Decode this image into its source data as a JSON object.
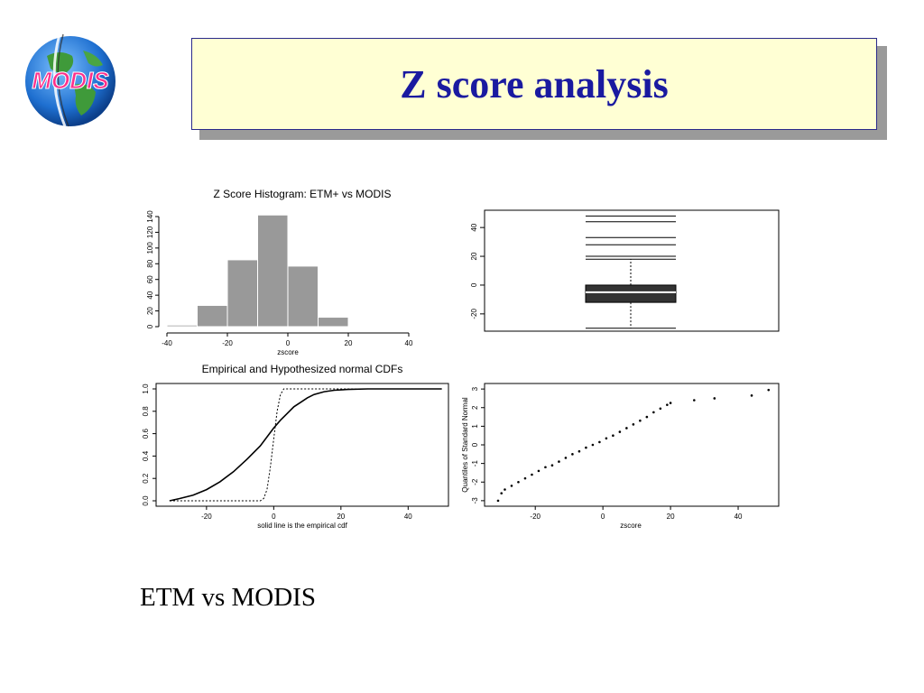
{
  "slide": {
    "title": "Z score analysis",
    "caption": "ETM vs MODIS",
    "logo_text": "MODIS"
  },
  "colors": {
    "title_text": "#1a1aa0",
    "title_fill": "#ffffd4",
    "bar_fill": "#999999",
    "box_fill": "#333333"
  },
  "chart_data": [
    {
      "type": "bar",
      "subtype": "histogram",
      "title": "Z Score Histogram: ETM+ vs MODIS",
      "xlabel": "zscore",
      "ylabel": "",
      "xlim": [
        -40,
        40
      ],
      "ylim": [
        0,
        140
      ],
      "xticks": [
        -40,
        -20,
        0,
        20,
        40
      ],
      "yticks": [
        0,
        20,
        40,
        60,
        80,
        100,
        120,
        140
      ],
      "bins": [
        {
          "from": -40,
          "to": -30,
          "count": 2
        },
        {
          "from": -30,
          "to": -20,
          "count": 27
        },
        {
          "from": -20,
          "to": -10,
          "count": 85
        },
        {
          "from": -10,
          "to": 0,
          "count": 142
        },
        {
          "from": 0,
          "to": 10,
          "count": 77
        },
        {
          "from": 10,
          "to": 20,
          "count": 12
        }
      ]
    },
    {
      "type": "box",
      "title": "",
      "ylim": [
        -32,
        52
      ],
      "yticks": [
        -20,
        0,
        20,
        40
      ],
      "q1": -12,
      "median": -5,
      "q3": 0,
      "whisker_low": -30,
      "whisker_high": 18,
      "outliers": [
        20,
        28,
        33,
        44,
        48
      ]
    },
    {
      "type": "line",
      "title": "Empirical and Hypothesized normal CDFs",
      "xlabel": "solid line is the empirical cdf",
      "xlim": [
        -35,
        52
      ],
      "ylim": [
        0,
        1
      ],
      "xticks": [
        -20,
        0,
        20,
        40
      ],
      "yticks": [
        "0.0",
        "0.2",
        "0.4",
        "0.6",
        "0.8",
        "1.0"
      ],
      "series": [
        {
          "style": "solid",
          "x": [
            -31,
            -28,
            -24,
            -20,
            -16,
            -12,
            -8,
            -4,
            0,
            2,
            4,
            6,
            8,
            10,
            12,
            15,
            18,
            22,
            28,
            50
          ],
          "y": [
            0.0,
            0.02,
            0.05,
            0.1,
            0.17,
            0.26,
            0.37,
            0.49,
            0.65,
            0.72,
            0.78,
            0.84,
            0.88,
            0.92,
            0.95,
            0.975,
            0.988,
            0.995,
            1.0,
            1.0
          ]
        },
        {
          "style": "dashed",
          "x": [
            -31,
            -4,
            -3,
            -2,
            -1,
            0,
            1,
            2,
            3,
            10,
            50
          ],
          "y": [
            0.0,
            0.0,
            0.02,
            0.1,
            0.3,
            0.55,
            0.8,
            0.95,
            1.0,
            1.0,
            1.0
          ]
        }
      ]
    },
    {
      "type": "scatter",
      "subtype": "qq",
      "title": "",
      "xlabel": "zscore",
      "ylabel": "Quantiles of Standard Normal",
      "xlim": [
        -35,
        52
      ],
      "ylim": [
        -3.2,
        3.2
      ],
      "xticks": [
        -20,
        0,
        20,
        40
      ],
      "yticks": [
        -3,
        -2,
        -1,
        0,
        1,
        2,
        3
      ],
      "points": [
        [
          -31,
          -3.0
        ],
        [
          -30,
          -2.6
        ],
        [
          -29,
          -2.4
        ],
        [
          -27,
          -2.2
        ],
        [
          -25,
          -2.0
        ],
        [
          -23,
          -1.8
        ],
        [
          -21,
          -1.6
        ],
        [
          -19,
          -1.4
        ],
        [
          -17,
          -1.2
        ],
        [
          -15,
          -1.1
        ],
        [
          -13,
          -0.9
        ],
        [
          -11,
          -0.7
        ],
        [
          -9,
          -0.5
        ],
        [
          -7,
          -0.35
        ],
        [
          -5,
          -0.15
        ],
        [
          -3,
          0.0
        ],
        [
          -1,
          0.15
        ],
        [
          1,
          0.35
        ],
        [
          3,
          0.5
        ],
        [
          5,
          0.7
        ],
        [
          7,
          0.9
        ],
        [
          9,
          1.1
        ],
        [
          11,
          1.3
        ],
        [
          13,
          1.5
        ],
        [
          15,
          1.75
        ],
        [
          17,
          1.95
        ],
        [
          19,
          2.15
        ],
        [
          20,
          2.25
        ],
        [
          27,
          2.4
        ],
        [
          33,
          2.5
        ],
        [
          44,
          2.65
        ],
        [
          49,
          2.95
        ]
      ]
    }
  ]
}
